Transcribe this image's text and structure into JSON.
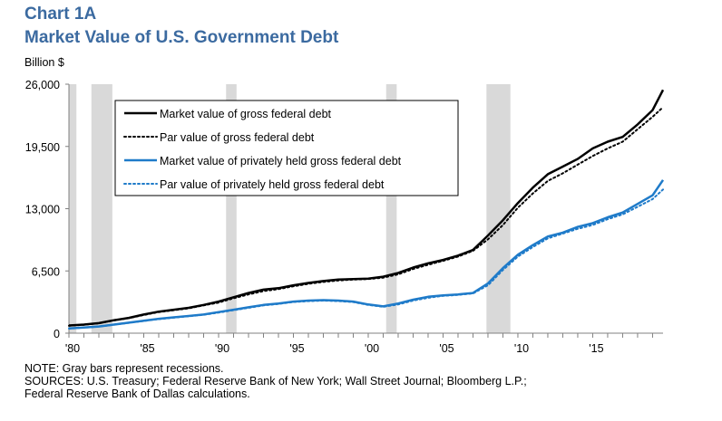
{
  "header": {
    "chart_number": "Chart 1A",
    "title": "Market Value of U.S. Government Debt",
    "unit": "Billion $"
  },
  "footer": {
    "note": "NOTE: Gray bars represent recessions.",
    "sources_line1": "SOURCES: U.S. Treasury; Federal Reserve Bank of New York; Wall Street Journal; Bloomberg L.P.;",
    "sources_line2": "Federal Reserve Bank of Dallas calculations."
  },
  "chart_data": {
    "type": "line",
    "title": "Market Value of U.S. Government Debt",
    "ylabel": "Billion $",
    "xlabel": "",
    "ylim": [
      0,
      26000
    ],
    "xlim": [
      1980,
      2019.7
    ],
    "yticks": [
      0,
      6500,
      13000,
      19500,
      26000
    ],
    "ytick_labels": [
      "0",
      "6,500",
      "13,000",
      "19,500",
      "26,000"
    ],
    "xticks": [
      1980,
      1985,
      1990,
      1995,
      2000,
      2005,
      2010,
      2015
    ],
    "xtick_labels": [
      "'80",
      "'85",
      "'90",
      "'95",
      "'00",
      "'05",
      "'10",
      "'15"
    ],
    "grid": false,
    "legend_position": "top-left",
    "recessions": [
      [
        1980.0,
        1980.5
      ],
      [
        1981.5,
        1982.9
      ],
      [
        1990.5,
        1991.2
      ],
      [
        2001.2,
        2001.9
      ],
      [
        2007.9,
        2009.5
      ]
    ],
    "x": [
      1980,
      1981,
      1982,
      1983,
      1984,
      1985,
      1986,
      1987,
      1988,
      1989,
      1990,
      1991,
      1992,
      1993,
      1994,
      1995,
      1996,
      1997,
      1998,
      1999,
      2000,
      2001,
      2002,
      2003,
      2004,
      2005,
      2006,
      2007,
      2008,
      2009,
      2010,
      2011,
      2012,
      2013,
      2014,
      2015,
      2016,
      2017,
      2018,
      2019,
      2019.7
    ],
    "series": [
      {
        "name": "Market value of gross federal debt",
        "color": "#000000",
        "style": "solid",
        "values": [
          800,
          900,
          1050,
          1350,
          1600,
          1950,
          2250,
          2450,
          2650,
          2950,
          3300,
          3750,
          4200,
          4550,
          4700,
          5000,
          5250,
          5450,
          5600,
          5650,
          5700,
          5900,
          6300,
          6850,
          7300,
          7650,
          8100,
          8700,
          10200,
          11800,
          13600,
          15200,
          16600,
          17400,
          18200,
          19300,
          20000,
          20500,
          21800,
          23300,
          25400
        ]
      },
      {
        "name": "Par value of gross federal debt",
        "color": "#000000",
        "style": "dotted",
        "values": [
          780,
          880,
          1030,
          1330,
          1570,
          1900,
          2200,
          2400,
          2600,
          2900,
          3200,
          3650,
          4050,
          4400,
          4600,
          4900,
          5150,
          5350,
          5500,
          5600,
          5650,
          5800,
          6150,
          6700,
          7150,
          7550,
          8000,
          8600,
          9800,
          11300,
          13100,
          14600,
          15900,
          16700,
          17600,
          18500,
          19300,
          20000,
          21300,
          22600,
          23600
        ]
      },
      {
        "name": "Market value of privately held gross federal debt",
        "color": "#1f7bc9",
        "style": "solid",
        "values": [
          500,
          600,
          700,
          900,
          1100,
          1300,
          1500,
          1650,
          1800,
          1950,
          2200,
          2450,
          2700,
          2950,
          3100,
          3300,
          3400,
          3450,
          3400,
          3300,
          3000,
          2800,
          3100,
          3500,
          3800,
          3950,
          4050,
          4200,
          5200,
          6800,
          8200,
          9200,
          10100,
          10500,
          11100,
          11500,
          12100,
          12600,
          13500,
          14400,
          16000
        ]
      },
      {
        "name": "Par value of privately held gross federal debt",
        "color": "#1f7bc9",
        "style": "dotted",
        "values": [
          480,
          580,
          680,
          880,
          1080,
          1280,
          1470,
          1620,
          1770,
          1920,
          2150,
          2400,
          2650,
          2900,
          3050,
          3250,
          3350,
          3400,
          3350,
          3250,
          2950,
          2750,
          3000,
          3400,
          3700,
          3900,
          4000,
          4150,
          5000,
          6600,
          8000,
          9000,
          9900,
          10400,
          10900,
          11300,
          11900,
          12400,
          13200,
          14000,
          15000
        ]
      }
    ]
  }
}
